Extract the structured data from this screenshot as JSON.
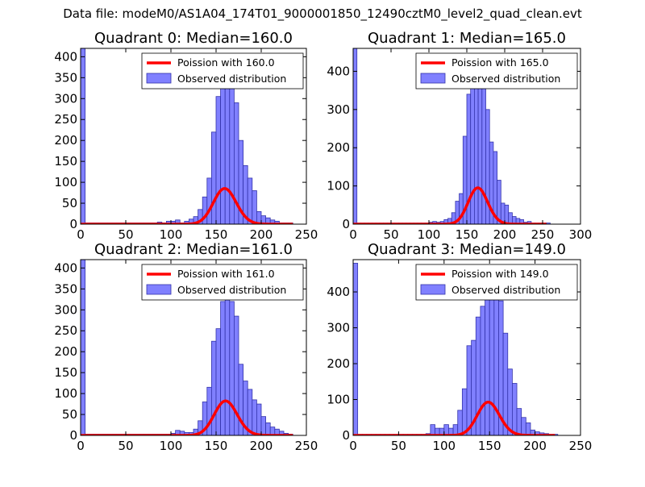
{
  "figure": {
    "suptitle": "Data file: modeM0/AS1A04_174T01_9000001850_12490cztM0_level2_quad_clean.evt"
  },
  "colors": {
    "bar_fill": "#8080ff",
    "bar_edge": "#3333aa",
    "poisson_line": "#ff0000",
    "axis": "#000000",
    "background": "#ffffff"
  },
  "chart_data": [
    {
      "type": "bar",
      "title": "Quadrant 0: Median=160.0",
      "xlim": [
        0,
        250
      ],
      "ylim": [
        0,
        420
      ],
      "xticks": [
        0,
        50,
        100,
        150,
        200,
        250
      ],
      "yticks": [
        0,
        50,
        100,
        150,
        200,
        250,
        300,
        350,
        400
      ],
      "legend": {
        "location": "top-right",
        "entries": [
          "Poission with 160.0",
          "Observed distribution"
        ]
      },
      "series": [
        {
          "name": "Observed distribution",
          "kind": "histogram",
          "bin_width": 5,
          "bins": [
            [
              0,
              420
            ],
            [
              5,
              3
            ],
            [
              10,
              3
            ],
            [
              15,
              3
            ],
            [
              20,
              3
            ],
            [
              25,
              3
            ],
            [
              30,
              3
            ],
            [
              35,
              3
            ],
            [
              40,
              3
            ],
            [
              45,
              3
            ],
            [
              50,
              3
            ],
            [
              55,
              3
            ],
            [
              60,
              3
            ],
            [
              65,
              3
            ],
            [
              70,
              3
            ],
            [
              75,
              3
            ],
            [
              80,
              3
            ],
            [
              85,
              5
            ],
            [
              90,
              3
            ],
            [
              95,
              7
            ],
            [
              100,
              7
            ],
            [
              105,
              10
            ],
            [
              110,
              3
            ],
            [
              115,
              7
            ],
            [
              120,
              12
            ],
            [
              125,
              18
            ],
            [
              130,
              35
            ],
            [
              135,
              65
            ],
            [
              140,
              110
            ],
            [
              145,
              220
            ],
            [
              150,
              305
            ],
            [
              155,
              405
            ],
            [
              160,
              390
            ],
            [
              165,
              325
            ],
            [
              170,
              290
            ],
            [
              175,
              200
            ],
            [
              180,
              140
            ],
            [
              185,
              110
            ],
            [
              190,
              80
            ],
            [
              195,
              30
            ],
            [
              200,
              20
            ],
            [
              205,
              15
            ],
            [
              210,
              10
            ],
            [
              215,
              7
            ],
            [
              220,
              3
            ],
            [
              225,
              3
            ],
            [
              230,
              3
            ]
          ]
        },
        {
          "name": "Poission with 160.0",
          "kind": "poisson",
          "mean": 160.0,
          "scale": 2700,
          "x_range": [
            0,
            235
          ]
        }
      ]
    },
    {
      "type": "bar",
      "title": "Quadrant 1: Median=165.0",
      "xlim": [
        0,
        300
      ],
      "ylim": [
        0,
        460
      ],
      "xticks": [
        0,
        50,
        100,
        150,
        200,
        250,
        300
      ],
      "yticks": [
        0,
        100,
        200,
        300,
        400
      ],
      "legend": {
        "location": "top-right",
        "entries": [
          "Poission with 165.0",
          "Observed distribution"
        ]
      },
      "series": [
        {
          "name": "Observed distribution",
          "kind": "histogram",
          "bin_width": 5,
          "bins": [
            [
              0,
              460
            ],
            [
              5,
              3
            ],
            [
              10,
              3
            ],
            [
              15,
              3
            ],
            [
              20,
              3
            ],
            [
              25,
              3
            ],
            [
              30,
              3
            ],
            [
              35,
              3
            ],
            [
              40,
              3
            ],
            [
              45,
              3
            ],
            [
              50,
              3
            ],
            [
              55,
              3
            ],
            [
              60,
              3
            ],
            [
              65,
              3
            ],
            [
              70,
              3
            ],
            [
              75,
              3
            ],
            [
              80,
              3
            ],
            [
              85,
              3
            ],
            [
              90,
              3
            ],
            [
              95,
              3
            ],
            [
              100,
              5
            ],
            [
              105,
              7
            ],
            [
              110,
              5
            ],
            [
              115,
              7
            ],
            [
              120,
              12
            ],
            [
              125,
              15
            ],
            [
              130,
              30
            ],
            [
              135,
              60
            ],
            [
              140,
              80
            ],
            [
              145,
              230
            ],
            [
              150,
              340
            ],
            [
              155,
              420
            ],
            [
              160,
              400
            ],
            [
              165,
              440
            ],
            [
              170,
              370
            ],
            [
              175,
              300
            ],
            [
              180,
              215
            ],
            [
              185,
              190
            ],
            [
              190,
              115
            ],
            [
              195,
              55
            ],
            [
              200,
              50
            ],
            [
              205,
              30
            ],
            [
              210,
              20
            ],
            [
              215,
              15
            ],
            [
              220,
              12
            ],
            [
              225,
              5
            ],
            [
              230,
              7
            ],
            [
              235,
              3
            ],
            [
              240,
              3
            ],
            [
              245,
              3
            ],
            [
              250,
              3
            ],
            [
              255,
              3
            ]
          ]
        },
        {
          "name": "Poission with 165.0",
          "kind": "poisson",
          "mean": 165.0,
          "scale": 3060,
          "x_range": [
            0,
            255
          ]
        }
      ]
    },
    {
      "type": "bar",
      "title": "Quadrant 2: Median=161.0",
      "xlim": [
        0,
        250
      ],
      "ylim": [
        0,
        420
      ],
      "xticks": [
        0,
        50,
        100,
        150,
        200,
        250
      ],
      "yticks": [
        0,
        50,
        100,
        150,
        200,
        250,
        300,
        350,
        400
      ],
      "legend": {
        "location": "top-right",
        "entries": [
          "Poission with 161.0",
          "Observed distribution"
        ]
      },
      "series": [
        {
          "name": "Observed distribution",
          "kind": "histogram",
          "bin_width": 5,
          "bins": [
            [
              0,
              420
            ],
            [
              5,
              3
            ],
            [
              10,
              3
            ],
            [
              15,
              3
            ],
            [
              20,
              3
            ],
            [
              25,
              3
            ],
            [
              30,
              3
            ],
            [
              35,
              3
            ],
            [
              40,
              3
            ],
            [
              45,
              3
            ],
            [
              50,
              3
            ],
            [
              55,
              3
            ],
            [
              60,
              3
            ],
            [
              65,
              3
            ],
            [
              70,
              3
            ],
            [
              75,
              3
            ],
            [
              80,
              3
            ],
            [
              85,
              3
            ],
            [
              90,
              3
            ],
            [
              95,
              3
            ],
            [
              100,
              5
            ],
            [
              105,
              12
            ],
            [
              110,
              10
            ],
            [
              115,
              7
            ],
            [
              120,
              7
            ],
            [
              125,
              15
            ],
            [
              130,
              35
            ],
            [
              135,
              80
            ],
            [
              140,
              115
            ],
            [
              145,
              225
            ],
            [
              150,
              255
            ],
            [
              155,
              320
            ],
            [
              160,
              395
            ],
            [
              165,
              320
            ],
            [
              170,
              285
            ],
            [
              175,
              170
            ],
            [
              180,
              130
            ],
            [
              185,
              110
            ],
            [
              190,
              85
            ],
            [
              195,
              75
            ],
            [
              200,
              45
            ],
            [
              205,
              30
            ],
            [
              210,
              20
            ],
            [
              215,
              15
            ],
            [
              220,
              10
            ],
            [
              225,
              5
            ],
            [
              230,
              3
            ]
          ]
        },
        {
          "name": "Poission with 161.0",
          "kind": "poisson",
          "mean": 161.0,
          "scale": 2620,
          "x_range": [
            0,
            235
          ]
        }
      ]
    },
    {
      "type": "bar",
      "title": "Quadrant 3: Median=149.0",
      "xlim": [
        0,
        250
      ],
      "ylim": [
        0,
        490
      ],
      "xticks": [
        0,
        50,
        100,
        150,
        200,
        250
      ],
      "yticks": [
        0,
        100,
        200,
        300,
        400
      ],
      "legend": {
        "location": "top-right",
        "entries": [
          "Poission with 149.0",
          "Observed distribution"
        ]
      },
      "series": [
        {
          "name": "Observed distribution",
          "kind": "histogram",
          "bin_width": 5,
          "bins": [
            [
              0,
              480
            ],
            [
              5,
              3
            ],
            [
              10,
              3
            ],
            [
              15,
              3
            ],
            [
              20,
              3
            ],
            [
              25,
              3
            ],
            [
              30,
              3
            ],
            [
              35,
              3
            ],
            [
              40,
              3
            ],
            [
              45,
              3
            ],
            [
              50,
              3
            ],
            [
              55,
              3
            ],
            [
              60,
              3
            ],
            [
              65,
              3
            ],
            [
              70,
              3
            ],
            [
              75,
              3
            ],
            [
              80,
              5
            ],
            [
              85,
              30
            ],
            [
              90,
              20
            ],
            [
              95,
              20
            ],
            [
              100,
              30
            ],
            [
              105,
              20
            ],
            [
              110,
              30
            ],
            [
              115,
              70
            ],
            [
              120,
              130
            ],
            [
              125,
              250
            ],
            [
              130,
              265
            ],
            [
              135,
              330
            ],
            [
              140,
              360
            ],
            [
              145,
              440
            ],
            [
              150,
              455
            ],
            [
              155,
              390
            ],
            [
              160,
              375
            ],
            [
              165,
              285
            ],
            [
              170,
              185
            ],
            [
              175,
              145
            ],
            [
              180,
              75
            ],
            [
              185,
              50
            ],
            [
              190,
              35
            ],
            [
              195,
              15
            ],
            [
              200,
              10
            ],
            [
              205,
              7
            ],
            [
              210,
              5
            ],
            [
              215,
              3
            ],
            [
              220,
              3
            ]
          ]
        },
        {
          "name": "Poission with 149.0",
          "kind": "poisson",
          "mean": 149.0,
          "scale": 2840,
          "x_range": [
            0,
            222
          ]
        }
      ]
    }
  ]
}
